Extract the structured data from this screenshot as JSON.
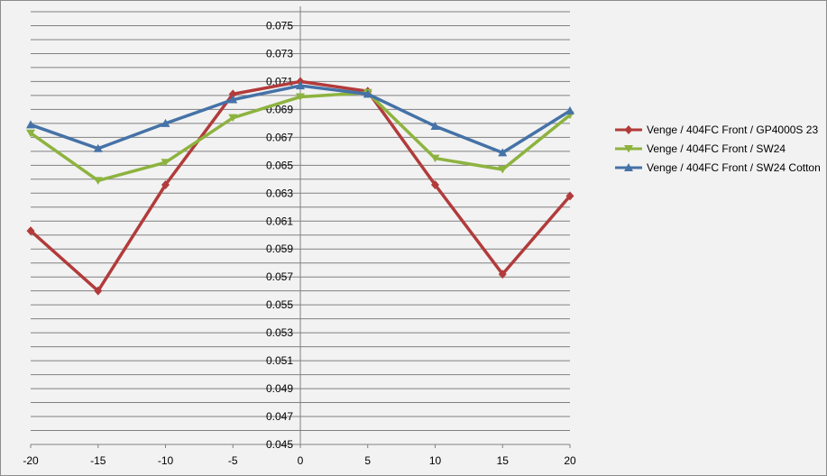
{
  "chart_data": {
    "type": "line",
    "title": "",
    "xlabel": "",
    "ylabel": "",
    "x": [
      -20,
      -15,
      -10,
      -5,
      0,
      5,
      10,
      15,
      20
    ],
    "x_ticks": [
      "-20",
      "-15",
      "-10",
      "-5",
      "0",
      "5",
      "10",
      "15",
      "20"
    ],
    "xlim": [
      -20,
      20
    ],
    "ylim": [
      0.045,
      0.076
    ],
    "y_ticks": [
      "0.045",
      "0.047",
      "0.049",
      "0.051",
      "0.053",
      "0.055",
      "0.057",
      "0.059",
      "0.061",
      "0.063",
      "0.065",
      "0.067",
      "0.069",
      "0.071",
      "0.073",
      "0.075"
    ],
    "y_tick_values": [
      0.045,
      0.047,
      0.049,
      0.051,
      0.053,
      0.055,
      0.057,
      0.059,
      0.061,
      0.063,
      0.065,
      0.067,
      0.069,
      0.071,
      0.073,
      0.075
    ],
    "gridlines": [
      0.045,
      0.046,
      0.047,
      0.048,
      0.049,
      0.05,
      0.051,
      0.052,
      0.053,
      0.054,
      0.055,
      0.056,
      0.057,
      0.058,
      0.059,
      0.06,
      0.061,
      0.062,
      0.063,
      0.064,
      0.065,
      0.066,
      0.067,
      0.068,
      0.069,
      0.07,
      0.071,
      0.072,
      0.073,
      0.074,
      0.075,
      0.076
    ],
    "grid": true,
    "legend_position": "right",
    "series": [
      {
        "name": "Venge / 404FC Front / GP4000S 23",
        "color": "#b23b3b",
        "marker": "diamond",
        "values": [
          0.0603,
          0.056,
          0.0636,
          0.0701,
          0.071,
          0.0703,
          0.0636,
          0.0572,
          0.0628
        ]
      },
      {
        "name": "Venge / 404FC Front / SW24",
        "color": "#8db33f",
        "marker": "triangle-down",
        "values": [
          0.0673,
          0.0639,
          0.0652,
          0.0684,
          0.0699,
          0.0702,
          0.0655,
          0.0647,
          0.0686
        ]
      },
      {
        "name": "Venge / 404FC Front / SW24 Cotton",
        "color": "#4572a7",
        "marker": "triangle-up",
        "values": [
          0.0679,
          0.0662,
          0.068,
          0.0697,
          0.0707,
          0.0701,
          0.0678,
          0.0659,
          0.0689
        ]
      }
    ]
  }
}
